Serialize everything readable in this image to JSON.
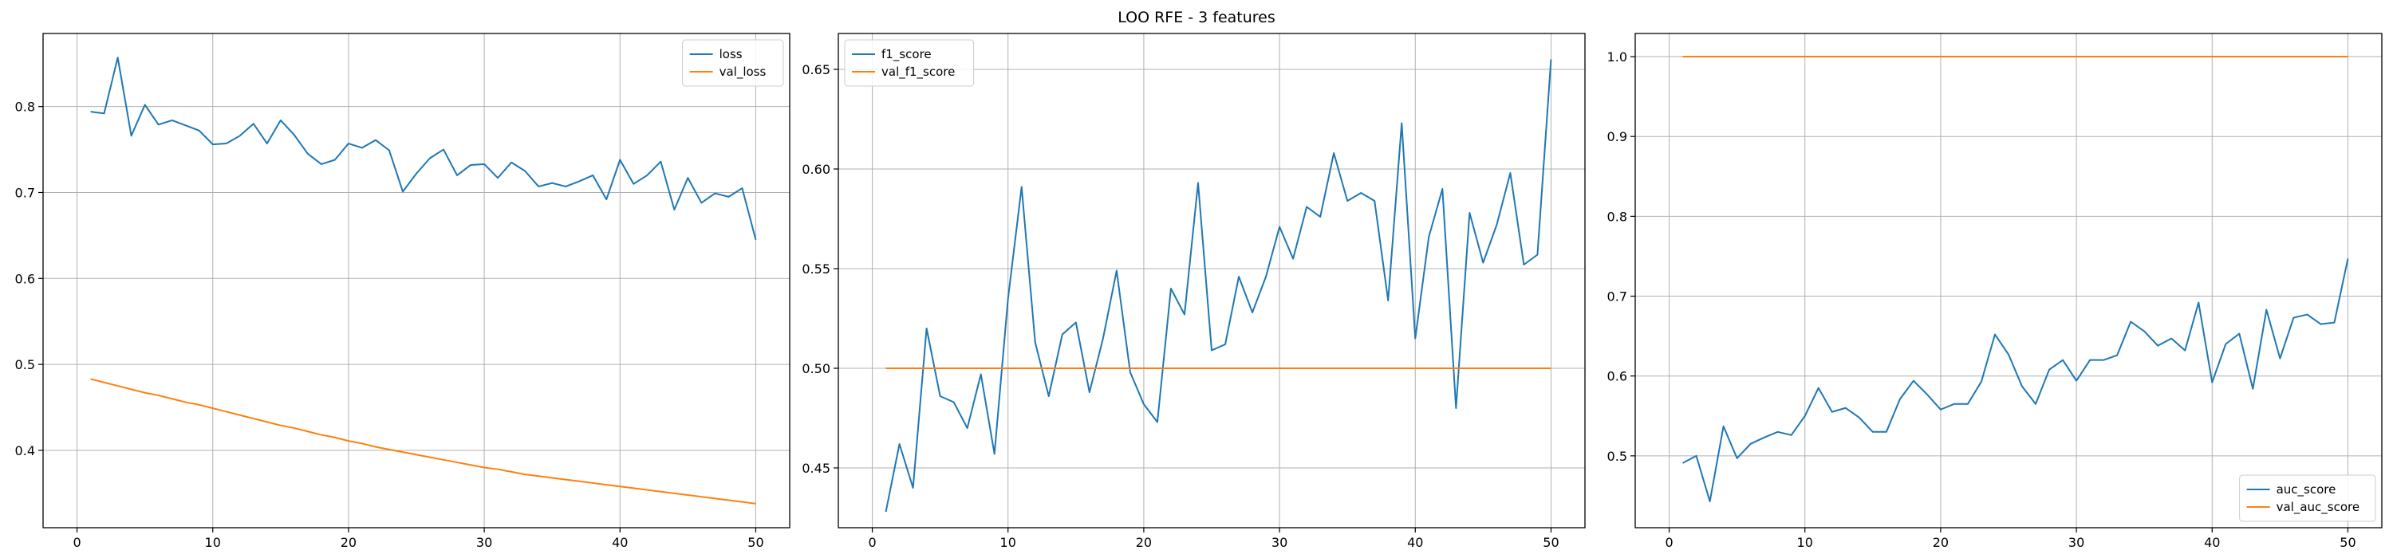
{
  "figure": {
    "title": "LOO RFE - 3 features"
  },
  "chart_data": [
    {
      "type": "line",
      "xlim": [
        -2.5,
        52.5
      ],
      "ylim": [
        0.31,
        0.885
      ],
      "xticks": [
        0,
        10,
        20,
        30,
        40,
        50
      ],
      "yticks": [
        0.4,
        0.5,
        0.6,
        0.7,
        0.8
      ],
      "ytick_labels": [
        "0.4",
        "0.5",
        "0.6",
        "0.7",
        "0.8"
      ],
      "grid": true,
      "legend_position": "upper right",
      "x": [
        1,
        2,
        3,
        4,
        5,
        6,
        7,
        8,
        9,
        10,
        11,
        12,
        13,
        14,
        15,
        16,
        17,
        18,
        19,
        20,
        21,
        22,
        23,
        24,
        25,
        26,
        27,
        28,
        29,
        30,
        31,
        32,
        33,
        34,
        35,
        36,
        37,
        38,
        39,
        40,
        41,
        42,
        43,
        44,
        45,
        46,
        47,
        48,
        49,
        50
      ],
      "series": [
        {
          "name": "loss",
          "color": "#1f77b4",
          "values": [
            0.794,
            0.792,
            0.857,
            0.766,
            0.802,
            0.779,
            0.784,
            0.778,
            0.772,
            0.756,
            0.757,
            0.766,
            0.78,
            0.757,
            0.784,
            0.767,
            0.745,
            0.733,
            0.738,
            0.757,
            0.752,
            0.761,
            0.749,
            0.701,
            0.722,
            0.74,
            0.75,
            0.72,
            0.732,
            0.733,
            0.717,
            0.735,
            0.725,
            0.707,
            0.711,
            0.707,
            0.713,
            0.72,
            0.692,
            0.738,
            0.71,
            0.72,
            0.736,
            0.68,
            0.717,
            0.688,
            0.699,
            0.695,
            0.705,
            0.645
          ]
        },
        {
          "name": "val_loss",
          "color": "#ff7f0e",
          "values": [
            0.483,
            0.479,
            0.475,
            0.471,
            0.467,
            0.464,
            0.46,
            0.456,
            0.453,
            0.449,
            0.445,
            0.441,
            0.437,
            0.433,
            0.429,
            0.426,
            0.422,
            0.418,
            0.415,
            0.411,
            0.408,
            0.404,
            0.401,
            0.398,
            0.395,
            0.392,
            0.389,
            0.386,
            0.383,
            0.38,
            0.378,
            0.375,
            0.372,
            0.37,
            0.368,
            0.366,
            0.364,
            0.362,
            0.36,
            0.358,
            0.356,
            0.354,
            0.352,
            0.35,
            0.348,
            0.346,
            0.344,
            0.342,
            0.34,
            0.338
          ]
        }
      ]
    },
    {
      "type": "line",
      "xlim": [
        -2.5,
        52.5
      ],
      "ylim": [
        0.42,
        0.668
      ],
      "xticks": [
        0,
        10,
        20,
        30,
        40,
        50
      ],
      "yticks": [
        0.45,
        0.5,
        0.55,
        0.6,
        0.65
      ],
      "ytick_labels": [
        "0.45",
        "0.50",
        "0.55",
        "0.60",
        "0.65"
      ],
      "grid": true,
      "legend_position": "upper left",
      "x": [
        1,
        2,
        3,
        4,
        5,
        6,
        7,
        8,
        9,
        10,
        11,
        12,
        13,
        14,
        15,
        16,
        17,
        18,
        19,
        20,
        21,
        22,
        23,
        24,
        25,
        26,
        27,
        28,
        29,
        30,
        31,
        32,
        33,
        34,
        35,
        36,
        37,
        38,
        39,
        40,
        41,
        42,
        43,
        44,
        45,
        46,
        47,
        48,
        49,
        50
      ],
      "series": [
        {
          "name": "f1_score",
          "color": "#1f77b4",
          "values": [
            0.428,
            0.462,
            0.44,
            0.52,
            0.486,
            0.483,
            0.47,
            0.497,
            0.457,
            0.535,
            0.591,
            0.513,
            0.486,
            0.517,
            0.523,
            0.488,
            0.515,
            0.549,
            0.498,
            0.482,
            0.473,
            0.54,
            0.527,
            0.593,
            0.509,
            0.512,
            0.546,
            0.528,
            0.546,
            0.571,
            0.555,
            0.581,
            0.576,
            0.608,
            0.584,
            0.588,
            0.584,
            0.534,
            0.623,
            0.515,
            0.566,
            0.59,
            0.48,
            0.578,
            0.553,
            0.572,
            0.598,
            0.552,
            0.557,
            0.655
          ]
        },
        {
          "name": "val_f1_score",
          "color": "#ff7f0e",
          "values": [
            0.5,
            0.5,
            0.5,
            0.5,
            0.5,
            0.5,
            0.5,
            0.5,
            0.5,
            0.5,
            0.5,
            0.5,
            0.5,
            0.5,
            0.5,
            0.5,
            0.5,
            0.5,
            0.5,
            0.5,
            0.5,
            0.5,
            0.5,
            0.5,
            0.5,
            0.5,
            0.5,
            0.5,
            0.5,
            0.5,
            0.5,
            0.5,
            0.5,
            0.5,
            0.5,
            0.5,
            0.5,
            0.5,
            0.5,
            0.5,
            0.5,
            0.5,
            0.5,
            0.5,
            0.5,
            0.5,
            0.5,
            0.5,
            0.5,
            0.5
          ]
        }
      ]
    },
    {
      "type": "line",
      "xlim": [
        -2.5,
        52.5
      ],
      "ylim": [
        0.41,
        1.029
      ],
      "xticks": [
        0,
        10,
        20,
        30,
        40,
        50
      ],
      "yticks": [
        0.5,
        0.6,
        0.7,
        0.8,
        0.9,
        1.0
      ],
      "ytick_labels": [
        "0.5",
        "0.6",
        "0.7",
        "0.8",
        "0.9",
        "1.0"
      ],
      "grid": true,
      "legend_position": "lower right",
      "x": [
        1,
        2,
        3,
        4,
        5,
        6,
        7,
        8,
        9,
        10,
        11,
        12,
        13,
        14,
        15,
        16,
        17,
        18,
        19,
        20,
        21,
        22,
        23,
        24,
        25,
        26,
        27,
        28,
        29,
        30,
        31,
        32,
        33,
        34,
        35,
        36,
        37,
        38,
        39,
        40,
        41,
        42,
        43,
        44,
        45,
        46,
        47,
        48,
        49,
        50
      ],
      "series": [
        {
          "name": "auc_score",
          "color": "#1f77b4",
          "values": [
            0.491,
            0.5,
            0.443,
            0.537,
            0.497,
            0.515,
            0.523,
            0.53,
            0.526,
            0.55,
            0.585,
            0.555,
            0.56,
            0.548,
            0.53,
            0.53,
            0.571,
            0.594,
            0.577,
            0.558,
            0.565,
            0.565,
            0.593,
            0.652,
            0.627,
            0.587,
            0.565,
            0.608,
            0.62,
            0.594,
            0.62,
            0.62,
            0.626,
            0.668,
            0.656,
            0.638,
            0.647,
            0.632,
            0.692,
            0.592,
            0.64,
            0.653,
            0.584,
            0.683,
            0.622,
            0.673,
            0.677,
            0.665,
            0.667,
            0.747
          ]
        },
        {
          "name": "val_auc_score",
          "color": "#ff7f0e",
          "values": [
            1.0,
            1.0,
            1.0,
            1.0,
            1.0,
            1.0,
            1.0,
            1.0,
            1.0,
            1.0,
            1.0,
            1.0,
            1.0,
            1.0,
            1.0,
            1.0,
            1.0,
            1.0,
            1.0,
            1.0,
            1.0,
            1.0,
            1.0,
            1.0,
            1.0,
            1.0,
            1.0,
            1.0,
            1.0,
            1.0,
            1.0,
            1.0,
            1.0,
            1.0,
            1.0,
            1.0,
            1.0,
            1.0,
            1.0,
            1.0,
            1.0,
            1.0,
            1.0,
            1.0,
            1.0,
            1.0,
            1.0,
            1.0,
            1.0,
            1.0
          ]
        }
      ]
    }
  ]
}
